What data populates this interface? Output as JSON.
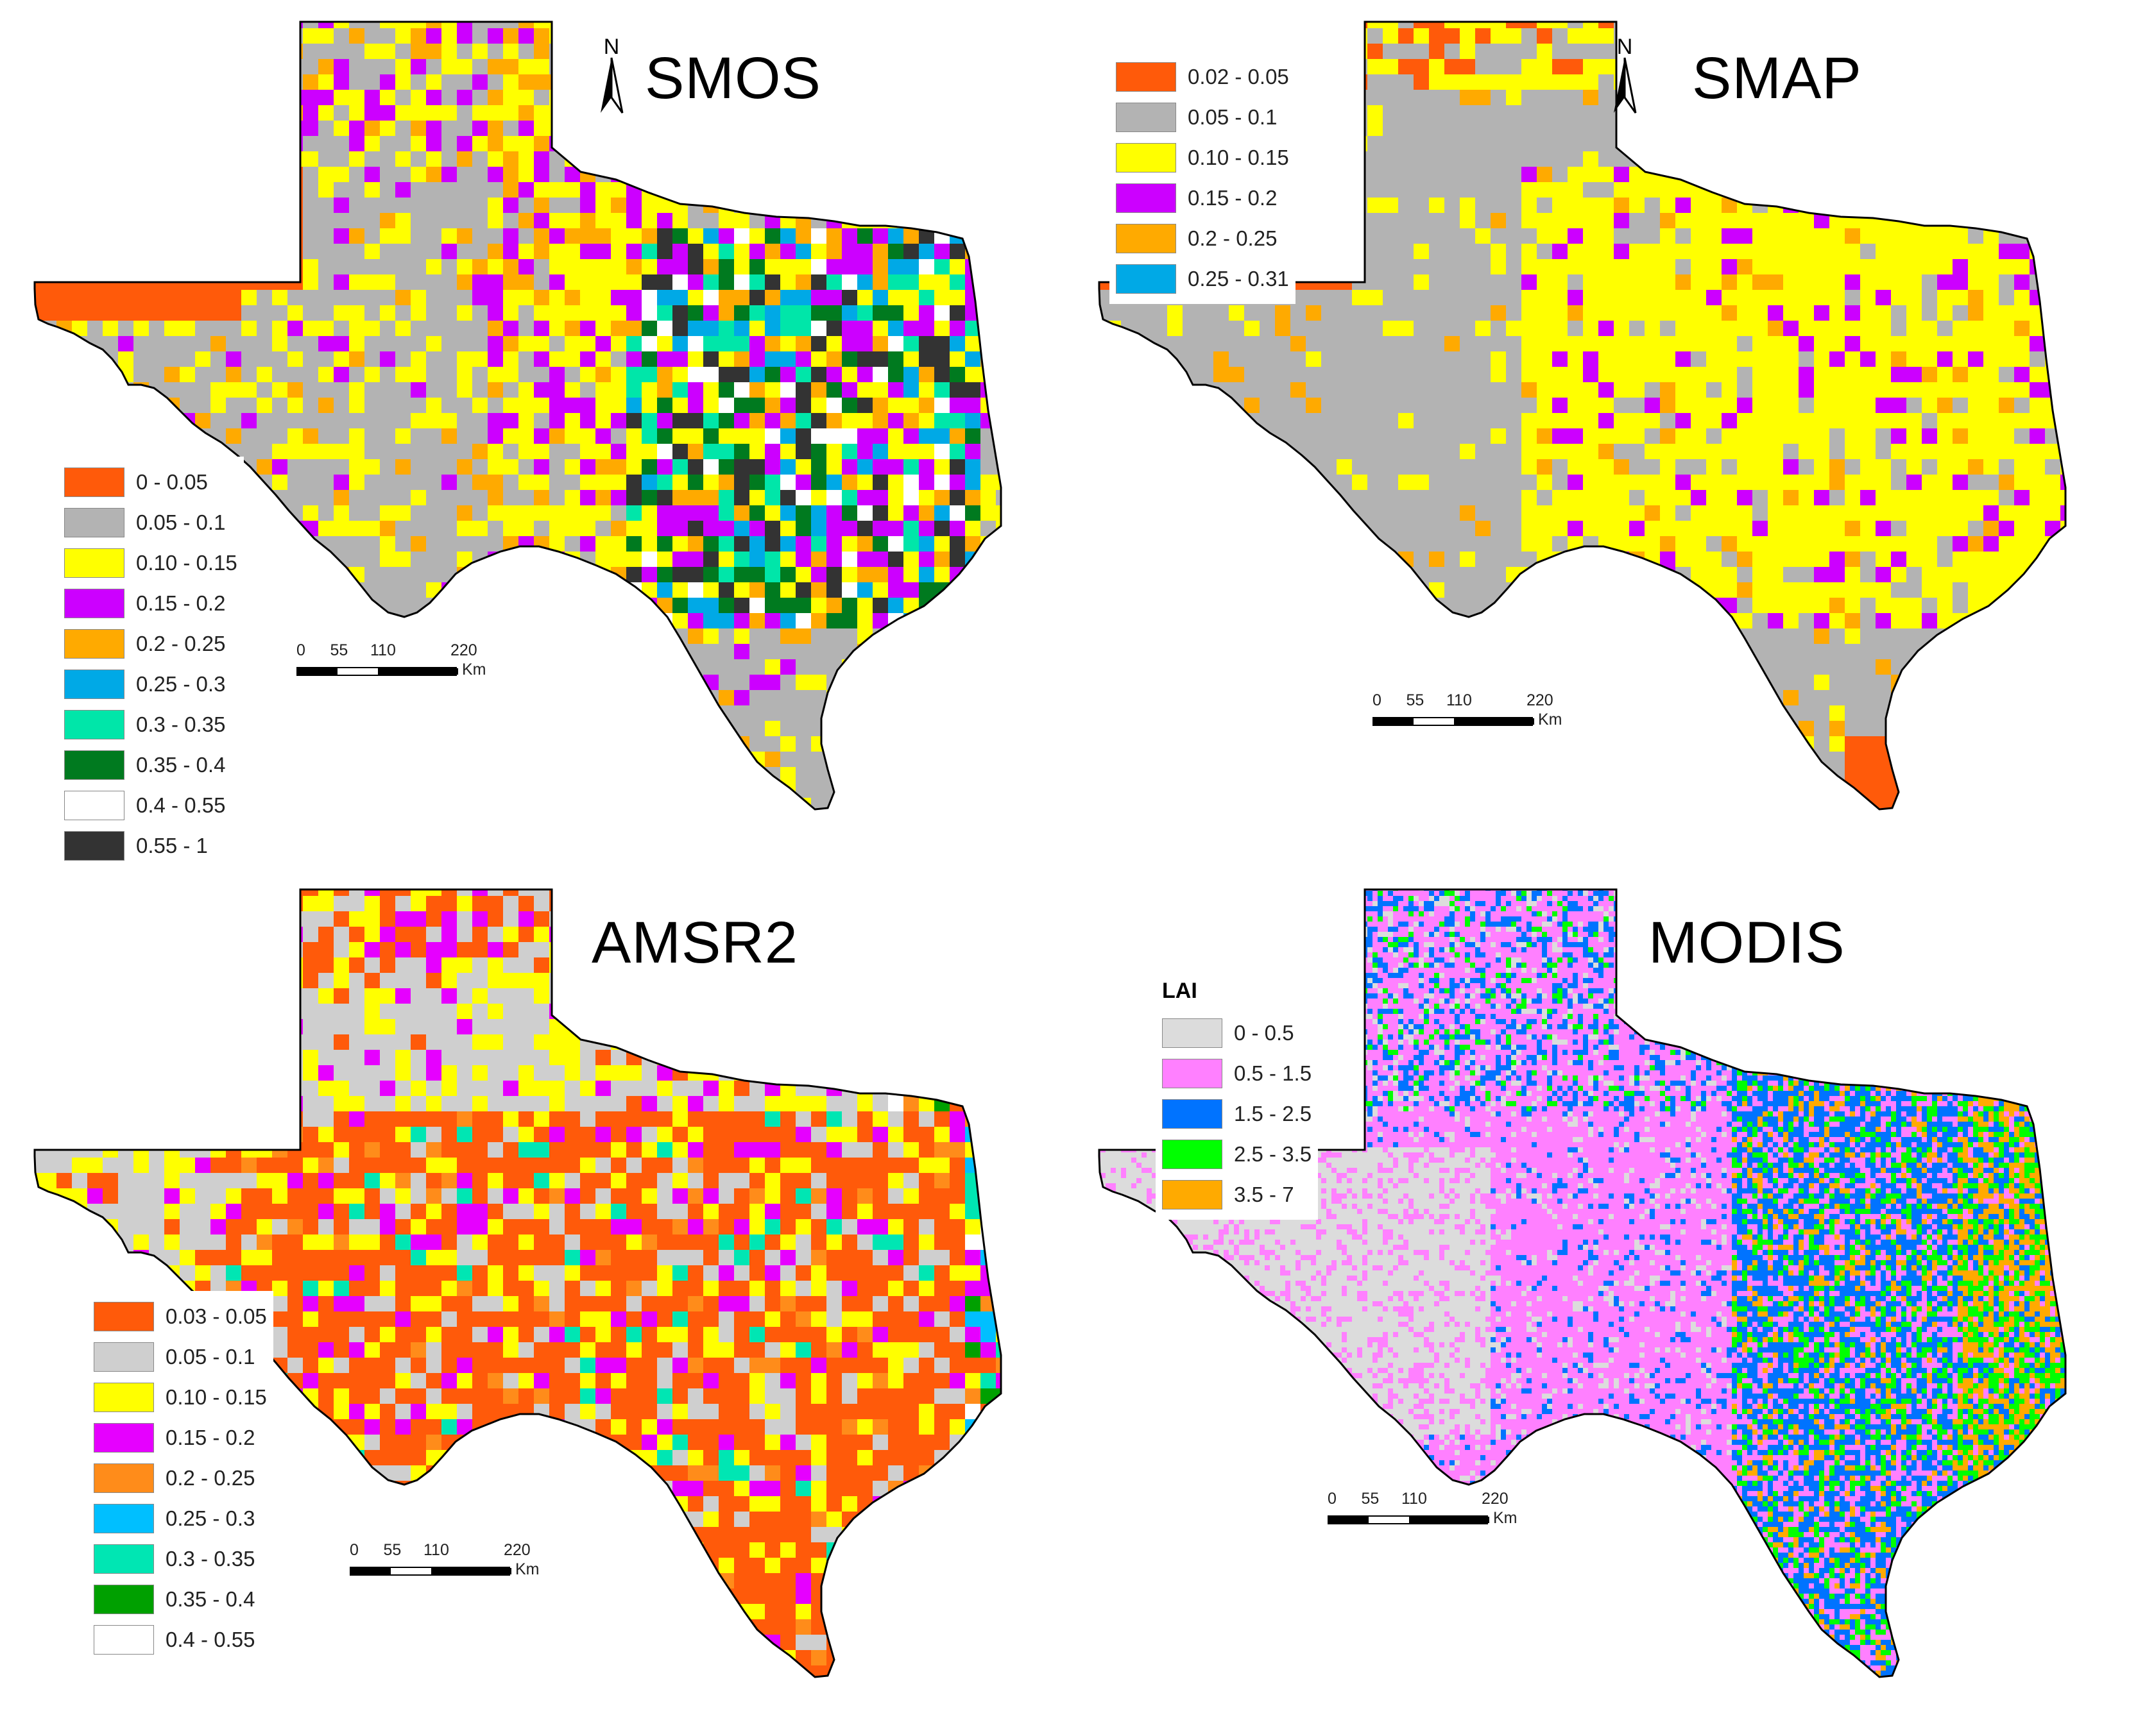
{
  "panels": {
    "smos": {
      "title": "SMOS",
      "north_label": "N",
      "legend": [
        {
          "label": "0 - 0.05",
          "color": "#ff5a0a"
        },
        {
          "label": "0.05 - 0.1",
          "color": "#b3b3b3"
        },
        {
          "label": "0.10 - 0.15",
          "color": "#ffff00"
        },
        {
          "label": "0.15 - 0.2",
          "color": "#cc00ff"
        },
        {
          "label": "0.2 - 0.25",
          "color": "#ffaa00"
        },
        {
          "label": "0.25 - 0.3",
          "color": "#00a9e6"
        },
        {
          "label": "0.3 - 0.35",
          "color": "#00e6a9"
        },
        {
          "label": "0.35 - 0.4",
          "color": "#007a1f"
        },
        {
          "label": "0.4 - 0.55",
          "color": "#ffffff"
        },
        {
          "label": "0.55 - 1",
          "color": "#333333"
        }
      ],
      "scale": {
        "ticks": [
          "0",
          "55",
          "110",
          "220"
        ],
        "unit": "Km"
      }
    },
    "smap": {
      "title": "SMAP",
      "north_label": "N",
      "legend": [
        {
          "label": "0.02 - 0.05",
          "color": "#ff5a0a"
        },
        {
          "label": "0.05 - 0.1",
          "color": "#b3b3b3"
        },
        {
          "label": "0.10 - 0.15",
          "color": "#ffff00"
        },
        {
          "label": "0.15 - 0.2",
          "color": "#cc00ff"
        },
        {
          "label": "0.2 - 0.25",
          "color": "#ffaa00"
        },
        {
          "label": "0.25 - 0.31",
          "color": "#00a9e6"
        }
      ],
      "scale": {
        "ticks": [
          "0",
          "55",
          "110",
          "220"
        ],
        "unit": "Km"
      }
    },
    "amsr2": {
      "title": "AMSR2",
      "legend": [
        {
          "label": "0.03 - 0.05",
          "color": "#ff5a0a"
        },
        {
          "label": "0.05 - 0.1",
          "color": "#cfcfcf"
        },
        {
          "label": "0.10 - 0.15",
          "color": "#ffff00"
        },
        {
          "label": "0.15 - 0.2",
          "color": "#e600ff"
        },
        {
          "label": "0.2 - 0.25",
          "color": "#ff8c1a"
        },
        {
          "label": "0.25 - 0.3",
          "color": "#00bfff"
        },
        {
          "label": "0.3 - 0.35",
          "color": "#00e6b3"
        },
        {
          "label": "0.35 - 0.4",
          "color": "#00a000"
        },
        {
          "label": "0.4 - 0.55",
          "color": "#ffffff"
        }
      ],
      "scale": {
        "ticks": [
          "0",
          "55",
          "110",
          "220"
        ],
        "unit": "Km"
      }
    },
    "modis": {
      "title": "MODIS",
      "legend_title": "LAI",
      "legend": [
        {
          "label": "0 - 0.5",
          "color": "#dcdcdc"
        },
        {
          "label": "0.5 - 1.5",
          "color": "#ff80ff"
        },
        {
          "label": "1.5 - 2.5",
          "color": "#0073ff"
        },
        {
          "label": "2.5 - 3.5",
          "color": "#00ff00"
        },
        {
          "label": "3.5 - 7",
          "color": "#ffaa00"
        }
      ],
      "scale": {
        "ticks": [
          "0",
          "55",
          "110",
          "220"
        ],
        "unit": "Km"
      }
    }
  }
}
